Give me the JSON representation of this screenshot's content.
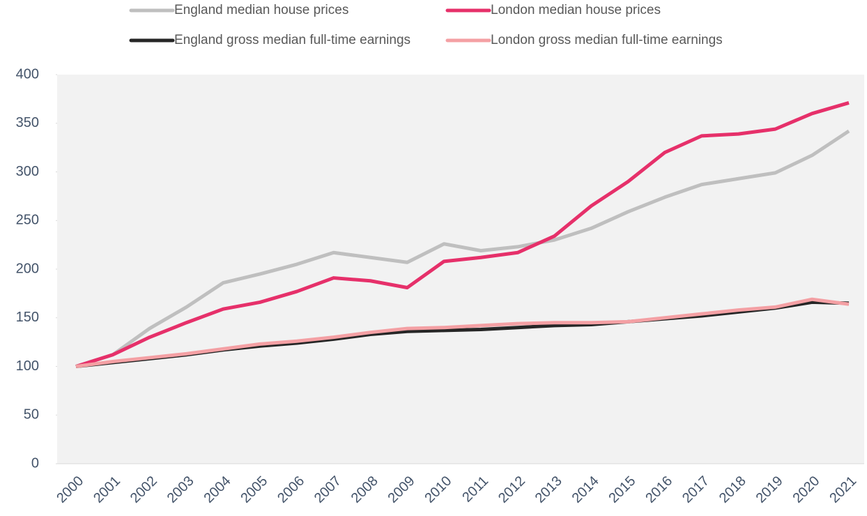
{
  "chart_data": {
    "type": "line",
    "categories": [
      "2000",
      "2001",
      "2002",
      "2003",
      "2004",
      "2005",
      "2006",
      "2007",
      "2008",
      "2009",
      "2010",
      "2011",
      "2012",
      "2013",
      "2014",
      "2015",
      "2016",
      "2017",
      "2018",
      "2019",
      "2020",
      "2021"
    ],
    "series": [
      {
        "name": "England median house prices",
        "color": "#bfbfbf",
        "values": [
          100,
          112,
          139,
          161,
          186,
          195,
          205,
          217,
          212,
          207,
          226,
          219,
          223,
          230,
          242,
          259,
          274,
          287,
          293,
          299,
          317,
          342
        ]
      },
      {
        "name": "London median house prices",
        "color": "#e6306a",
        "values": [
          100,
          112,
          130,
          145,
          159,
          166,
          177,
          191,
          188,
          181,
          208,
          212,
          217,
          234,
          265,
          290,
          320,
          337,
          339,
          344,
          360,
          371
        ]
      },
      {
        "name": "England gross median full-time earnings",
        "color": "#262626",
        "values": [
          100,
          104,
          108,
          112,
          117,
          121,
          124,
          128,
          133,
          136,
          137,
          138,
          140,
          142,
          143,
          146,
          149,
          152,
          156,
          160,
          166,
          165
        ]
      },
      {
        "name": "London gross median full-time earnings",
        "color": "#f4a0a4",
        "values": [
          100,
          105,
          109,
          113,
          118,
          123,
          126,
          130,
          135,
          139,
          140,
          142,
          144,
          145,
          145,
          146,
          150,
          154,
          158,
          161,
          169,
          164
        ]
      }
    ],
    "ylim": [
      0,
      400
    ],
    "yticks": [
      0,
      50,
      100,
      150,
      200,
      250,
      300,
      350,
      400
    ],
    "legend": "top"
  }
}
